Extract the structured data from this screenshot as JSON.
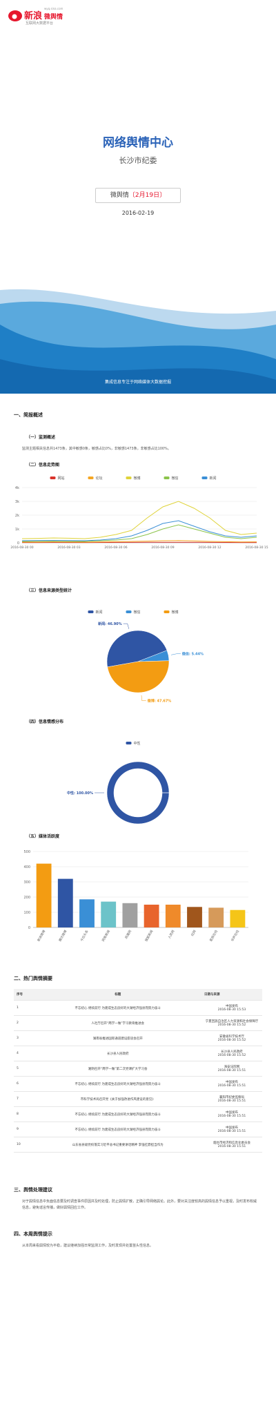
{
  "header": {
    "logo": "新浪",
    "product": "微舆情",
    "tagline": "互联网大数据平台",
    "url": "wyq.sina.com"
  },
  "cover": {
    "title": "网络舆情中心",
    "subtitle": "长沙市纪委",
    "badge": "微舆情",
    "badge_date": "〔2月19日〕",
    "date": "2016-02-19",
    "banner": "集成信息专注于网络媒体大数据挖掘"
  },
  "sections": {
    "s1": "一、简报概述",
    "s1_1": "（一）监测概述",
    "s1_1_text": "监测主题相关信息共1473条，其中敏感0条，敏感占比0%，非敏感1473条，非敏感占比100%。",
    "s1_2": "（二）信息走势图",
    "s1_3": "（三）信息来源类型统计",
    "s1_4": "（四）信息情感分布",
    "s1_5": "（五）媒体活跃度",
    "s2": "二、热门舆情摘要",
    "s3": "三、舆情处理建议",
    "s3_text": "对于舆情信息中负面信息要及时调查事件原因并及时处理，防止舆情扩散，正确引导网络舆论。此外，要对关注度较高的舆情信息予以重视，及时发布权威信息，避免谣言传播，做好舆情回应工作。",
    "s4": "四、本周舆情提示",
    "s4_text": "从本周来看舆情较为平稳，建议继续加强日常监测工作，及时发现并处置苗头性信息。"
  },
  "chart_data": [
    {
      "type": "line",
      "categories": [
        "2016-08-30 00",
        null,
        null,
        "2016-08-30 03",
        null,
        null,
        "2016-08-30 06",
        null,
        null,
        "2016-08-30 09",
        null,
        null,
        "2016-08-30 12",
        null,
        null,
        "2016-08-30 15"
      ],
      "series": [
        {
          "name": "网站",
          "color": "#d9332b",
          "values": [
            20,
            20,
            25,
            20,
            20,
            25,
            30,
            30,
            40,
            40,
            40,
            35,
            30,
            25,
            20,
            20
          ]
        },
        {
          "name": "论坛",
          "color": "#f5a623",
          "values": [
            50,
            50,
            60,
            55,
            50,
            60,
            80,
            100,
            120,
            150,
            160,
            140,
            100,
            80,
            60,
            70
          ]
        },
        {
          "name": "微博",
          "color": "#dfd33a",
          "values": [
            300,
            320,
            350,
            330,
            300,
            400,
            600,
            900,
            1800,
            2600,
            3000,
            2500,
            1800,
            900,
            600,
            700
          ]
        },
        {
          "name": "微信",
          "color": "#8bc34a",
          "values": [
            100,
            110,
            120,
            100,
            100,
            150,
            200,
            300,
            600,
            1000,
            1300,
            1000,
            700,
            400,
            300,
            400
          ]
        },
        {
          "name": "新闻",
          "color": "#3a8fd6",
          "values": [
            150,
            160,
            170,
            160,
            150,
            200,
            300,
            500,
            900,
            1400,
            1600,
            1200,
            800,
            500,
            400,
            500
          ]
        }
      ],
      "ylim": [
        0,
        4000
      ],
      "yticks": [
        0,
        {
          "value": 1000,
          "label": "1k"
        },
        {
          "value": 2000,
          "label": "2k"
        },
        {
          "value": 3000,
          "label": "3k"
        },
        {
          "value": 4000,
          "label": "4k"
        }
      ],
      "grid": true,
      "legend": "top"
    },
    {
      "type": "pie",
      "categories": [
        "新闻",
        "微信",
        "微博"
      ],
      "values": [
        46.9,
        5.44,
        47.67
      ],
      "value_labels": [
        "新闻: 46.90%",
        "微信: 5.44%",
        "微博: 47.67%"
      ],
      "colors": [
        "#2f55a4",
        "#3a8fd6",
        "#f39c12"
      ],
      "legend": "top"
    },
    {
      "type": "pie",
      "donut": true,
      "categories": [
        "中性"
      ],
      "values": [
        100
      ],
      "value_labels": [
        "中性: 100.00%"
      ],
      "colors": [
        "#2f55a4"
      ],
      "legend": "top"
    },
    {
      "type": "bar",
      "categories": [
        "新浪微博",
        "腾讯微博",
        "今日头条",
        "网易新闻",
        "凤凰网",
        "搜狐新闻",
        "人民网",
        "红网",
        "星辰在线",
        "华声在线"
      ],
      "values": [
        420,
        320,
        185,
        170,
        160,
        150,
        150,
        135,
        130,
        115
      ],
      "colors": [
        "#f39c12",
        "#2f55a4",
        "#3a8fd6",
        "#6cc3c9",
        "#a0a0a0",
        "#e8642c",
        "#ef8a2a",
        "#a0561c",
        "#d69a5a",
        "#f5c518"
      ],
      "ylim": [
        0,
        500
      ],
      "yticks": [
        0,
        100,
        200,
        300,
        400,
        500
      ],
      "grid": true
    }
  ],
  "table": {
    "headers": [
      "序号",
      "标题",
      "日期与来源"
    ],
    "rows": [
      [
        "1",
        "不忘初心 继续前行 为建成生态良好的大湖经济强县而努力奋斗",
        "中国发布",
        "2016-08-30 15:53"
      ],
      [
        "2",
        "人社厅召开“两学一做”学习教育推进会",
        "宁夏回族自治区人力资源和社会保障厅",
        "2016-08-30 15:52"
      ],
      [
        "3",
        "湖南省推进国际通道建设座谈会召开",
        "安徽省科学技术厅",
        "2016-08-30 15:52"
      ],
      [
        "4",
        "长沙县人民政府",
        "长沙县人民政府",
        "2016-08-30 15:52"
      ],
      [
        "5",
        "湘阴召开“两学一做”第二次党课扩大学习会",
        "海安法院网",
        "2016-08-30 15:51"
      ],
      [
        "6",
        "不忘初心 继续前行 为建成生态良好的大湖经济强县而努力奋斗",
        "中国发布",
        "2016-08-30 15:51"
      ],
      [
        "7",
        "市科学技术局召开党《关于加强改进作风建设的意见》",
        "襄阳市纪委监察局",
        "2016-08-30 15:51"
      ],
      [
        "8",
        "不忘初心 继续前行 为建成生态良好的大湖经济强县而努力奋斗",
        "中国发布",
        "2016-08-30 15:51"
      ],
      [
        "9",
        "不忘初心 继续前行 为建成生态良好的大湖经济强县而努力奋斗",
        "中国发布",
        "2016-08-30 15:51"
      ],
      [
        "10",
        "山东省县级党校落实习近平总书记重要讲话精神 李强扛鼎担当作为",
        "烟台市经济和信息化委员会",
        "2016-08-30 15:51"
      ]
    ]
  }
}
